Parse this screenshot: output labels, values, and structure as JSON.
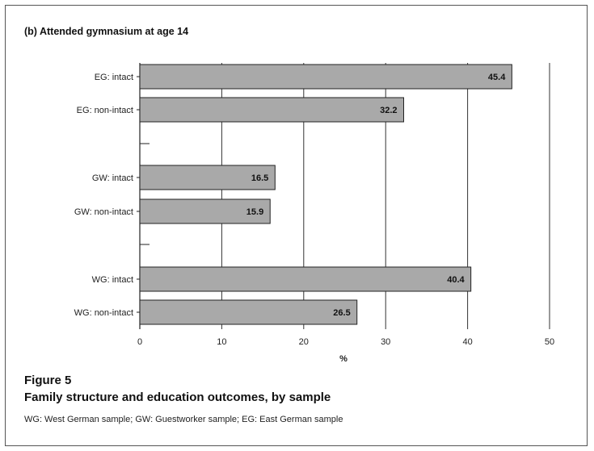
{
  "figure": {
    "label": "Figure 5",
    "title": "Family structure and education outcomes, by sample",
    "note": "WG: West German sample; GW: Guestworker sample; EG: East German sample"
  },
  "chart_data": {
    "type": "bar",
    "orientation": "horizontal",
    "title": "(b) Attended gymnasium at age 14",
    "xlabel": "%",
    "ylabel": "",
    "xlim": [
      0,
      50
    ],
    "xticks": [
      0,
      10,
      20,
      30,
      40,
      50
    ],
    "grid": true,
    "legend": "none",
    "bar_color": "#a9a9a9",
    "categories": [
      "EG: intact",
      "EG: non-intact",
      "GW: intact",
      "GW: non-intact",
      "WG: intact",
      "WG: non-intact"
    ],
    "values": [
      45.4,
      32.2,
      16.5,
      15.9,
      40.4,
      26.5
    ],
    "value_labels": [
      "45.4",
      "32.2",
      "16.5",
      "15.9",
      "40.4",
      "26.5"
    ]
  }
}
